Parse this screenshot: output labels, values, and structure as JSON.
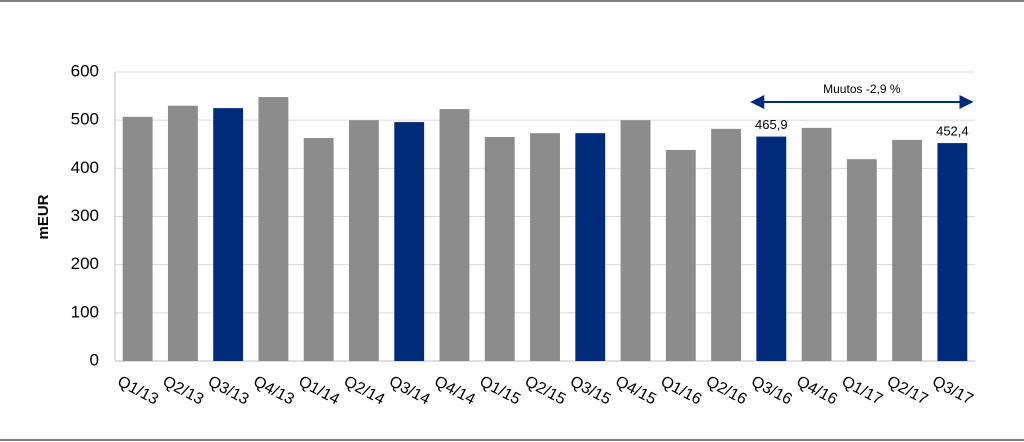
{
  "chart_data": {
    "type": "bar",
    "y_label": "mEUR",
    "annotation": "Muutos -2,9 %",
    "categories": [
      "Q1/13",
      "Q2/13",
      "Q3/13",
      "Q4/13",
      "Q1/14",
      "Q2/14",
      "Q3/14",
      "Q4/14",
      "Q1/15",
      "Q2/15",
      "Q3/15",
      "Q4/15",
      "Q1/16",
      "Q2/16",
      "Q3/16",
      "Q4/16",
      "Q1/17",
      "Q2/17",
      "Q3/17"
    ],
    "values": [
      507,
      530,
      525,
      548,
      463,
      500,
      496,
      523,
      465,
      473,
      473,
      500,
      438,
      482,
      465.9,
      484,
      419,
      459,
      452.4
    ],
    "value_labels": [
      null,
      null,
      null,
      null,
      null,
      null,
      null,
      null,
      null,
      null,
      null,
      null,
      null,
      null,
      "465,9",
      null,
      null,
      null,
      "452,4"
    ],
    "colors": [
      "#8c8c8c",
      "#8c8c8c",
      "#002a7a",
      "#8c8c8c",
      "#8c8c8c",
      "#8c8c8c",
      "#002a7a",
      "#8c8c8c",
      "#8c8c8c",
      "#8c8c8c",
      "#002a7a",
      "#8c8c8c",
      "#8c8c8c",
      "#8c8c8c",
      "#002a7a",
      "#8c8c8c",
      "#8c8c8c",
      "#8c8c8c",
      "#002a7a"
    ],
    "ylim": [
      0,
      600
    ],
    "yticks": [
      0,
      100,
      200,
      300,
      400,
      500,
      600
    ],
    "grid": true
  }
}
